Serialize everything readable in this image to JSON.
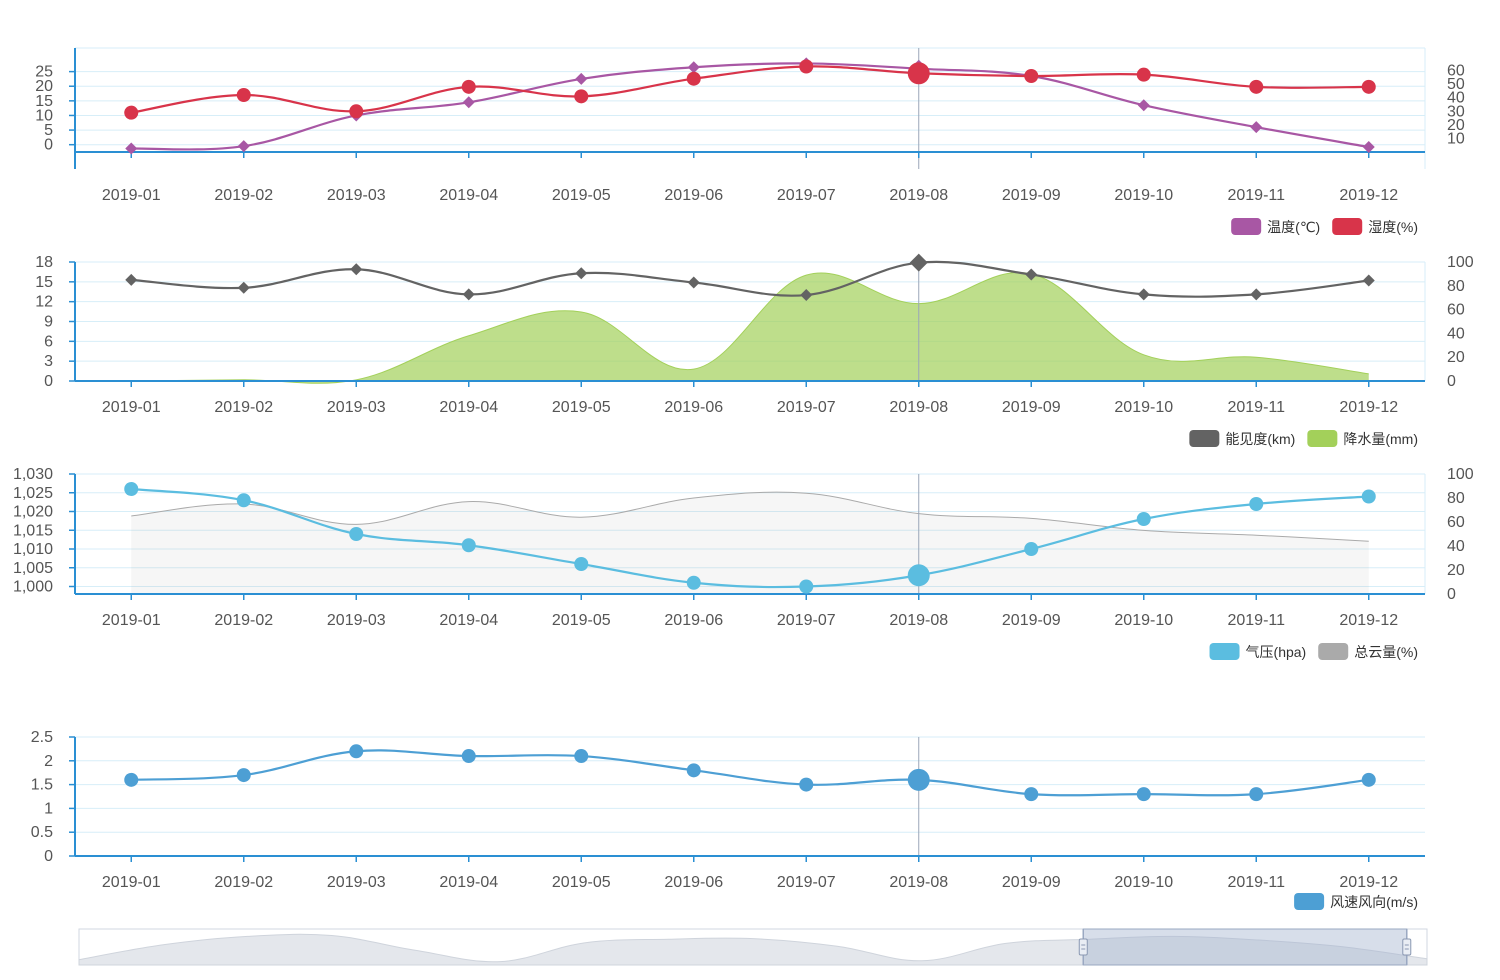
{
  "months": [
    "2019-01",
    "2019-02",
    "2019-03",
    "2019-04",
    "2019-05",
    "2019-06",
    "2019-07",
    "2019-08",
    "2019-09",
    "2019-10",
    "2019-11",
    "2019-12"
  ],
  "highlight_index": 7,
  "colors": {
    "axis": "#2a8fd3",
    "grid": "#d7eef8",
    "tick_text": "#555555",
    "pointer": "#9aa6b8"
  },
  "chart_data": [
    {
      "type": "line",
      "left_axis": {
        "ticks": [
          "0",
          "5",
          "10",
          "15",
          "20",
          "25"
        ],
        "range": [
          -2.5,
          30
        ]
      },
      "right_axis": {
        "ticks": [
          "10",
          "20",
          "30",
          "40",
          "50",
          "60"
        ],
        "range": [
          0,
          70
        ]
      },
      "series": [
        {
          "name": "温度(℃)",
          "axis": "left",
          "marker": "diamond",
          "color": "#a857a4",
          "values": [
            -1.3,
            -0.5,
            10,
            14.5,
            22.5,
            26.5,
            27.8,
            26,
            23.5,
            13.5,
            6,
            -0.8
          ]
        },
        {
          "name": "湿度(%)",
          "axis": "right",
          "marker": "circle",
          "color": "#d8344a",
          "values": [
            29,
            42,
            30,
            48,
            41,
            54,
            63,
            58,
            56,
            57,
            48,
            48
          ]
        }
      ],
      "legend": [
        "温度(℃)",
        "湿度(%)"
      ]
    },
    {
      "type": "line+area",
      "left_axis": {
        "ticks": [
          "0",
          "3",
          "6",
          "9",
          "12",
          "15",
          "18"
        ],
        "range": [
          0,
          18
        ]
      },
      "right_axis": {
        "ticks": [
          "0",
          "20",
          "40",
          "60",
          "80",
          "100"
        ],
        "range": [
          0,
          100
        ]
      },
      "series": [
        {
          "name": "能见度(km)",
          "axis": "left",
          "marker": "diamond",
          "color": "#636363",
          "kind": "line",
          "values": [
            15.3,
            14.1,
            16.9,
            13.1,
            16.3,
            14.9,
            13,
            17.9,
            16.1,
            13.1,
            13.1,
            15.2
          ]
        },
        {
          "name": "降水量(mm)",
          "axis": "right",
          "marker": "none",
          "color": "#a3d05a",
          "kind": "area",
          "values": [
            0,
            1,
            1,
            38,
            58,
            10,
            89,
            65,
            90,
            22,
            20,
            6
          ]
        }
      ],
      "legend": [
        "能见度(km)",
        "降水量(mm)"
      ]
    },
    {
      "type": "line+area",
      "left_axis": {
        "ticks": [
          "1,000",
          "1,005",
          "1,010",
          "1,015",
          "1,020",
          "1,025",
          "1,030"
        ],
        "range": [
          998,
          1030
        ]
      },
      "right_axis": {
        "ticks": [
          "0",
          "20",
          "40",
          "60",
          "80",
          "100"
        ],
        "range": [
          0,
          100
        ]
      },
      "series": [
        {
          "name": "气压(hpa)",
          "axis": "left",
          "marker": "circle",
          "color": "#5bbde0",
          "kind": "line",
          "values": [
            1026,
            1023,
            1014,
            1011,
            1006,
            1001,
            1000,
            1003,
            1010,
            1018,
            1022,
            1024
          ]
        },
        {
          "name": "总云量(%)",
          "axis": "right",
          "marker": "none",
          "color": "#aaaaaa",
          "kind": "area",
          "values": [
            65,
            75,
            58,
            77,
            64,
            80,
            84,
            67,
            63,
            53,
            49,
            44
          ]
        }
      ],
      "legend": [
        "气压(hpa)",
        "总云量(%)"
      ]
    },
    {
      "type": "line",
      "left_axis": {
        "ticks": [
          "0",
          "0.5",
          "1",
          "1.5",
          "2",
          "2.5"
        ],
        "range": [
          0,
          2.5
        ]
      },
      "series": [
        {
          "name": "风速风向(m/s)",
          "axis": "left",
          "marker": "circle",
          "color": "#4d9fd4",
          "values": [
            1.6,
            1.7,
            2.2,
            2.1,
            2.1,
            1.8,
            1.5,
            1.6,
            1.3,
            1.3,
            1.3,
            1.6
          ]
        }
      ],
      "legend": [
        "风速风向(m/s)"
      ]
    }
  ],
  "data_zoom": {
    "window_start": 0.745,
    "window_end": 0.985,
    "shape": [
      0.12,
      0.65,
      0.95,
      0.98,
      0.45,
      0.05,
      0.72,
      0.85,
      0.87,
      0.6,
      0.08,
      0.7,
      0.85,
      0.95,
      0.82,
      0.58,
      0.15
    ]
  }
}
